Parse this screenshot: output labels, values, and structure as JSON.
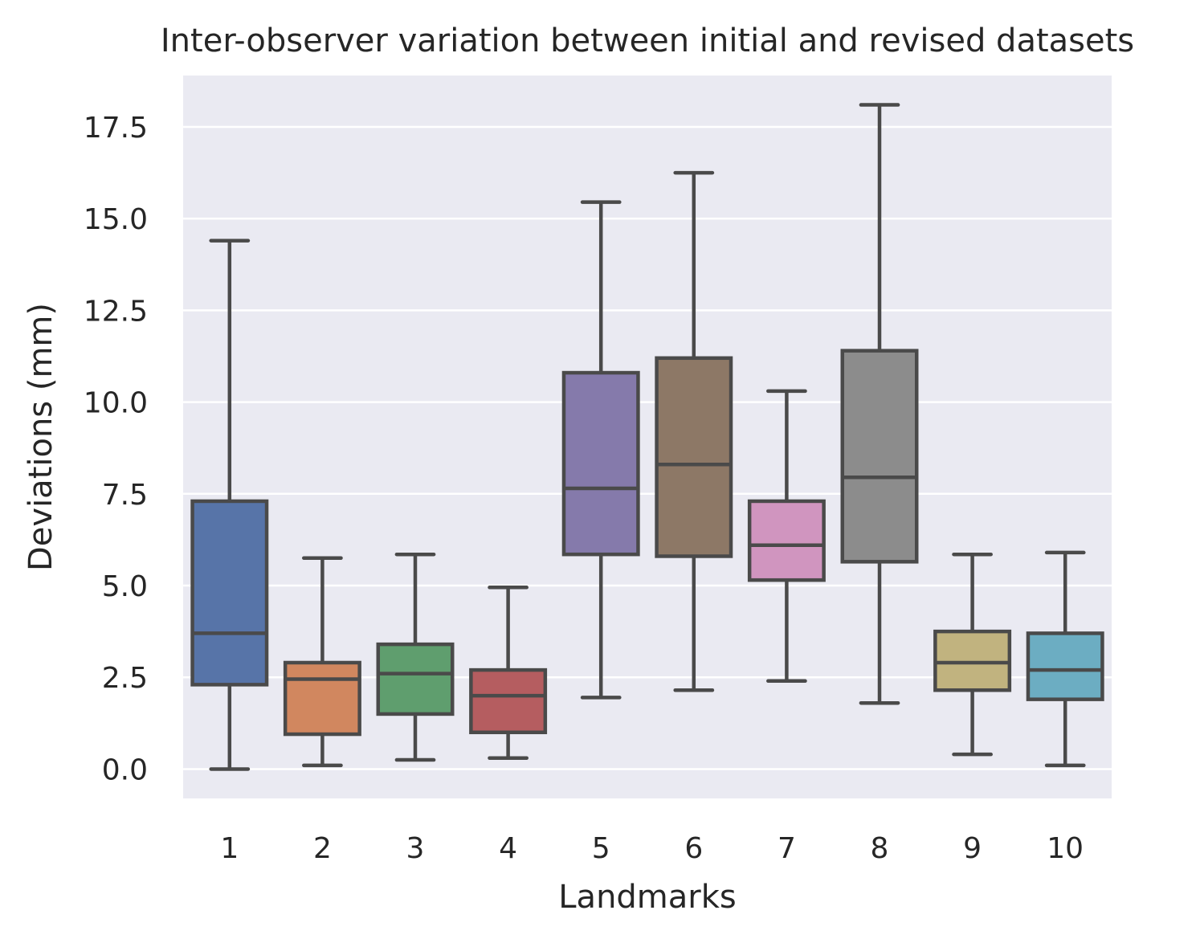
{
  "chart_data": {
    "type": "box",
    "title": "Inter-observer variation between initial and revised datasets",
    "xlabel": "Landmarks",
    "ylabel": "Deviations (mm)",
    "ylim": [
      -0.8,
      18.9
    ],
    "yticks": [
      "0.0",
      "2.5",
      "5.0",
      "7.5",
      "10.0",
      "12.5",
      "15.0",
      "17.5"
    ],
    "grid": true,
    "legend": "none",
    "background_color": "#eaeaf2",
    "grid_color": "#ffffff",
    "line_color": "#4a4a4a",
    "categories": [
      "1",
      "2",
      "3",
      "4",
      "5",
      "6",
      "7",
      "8",
      "9",
      "10"
    ],
    "boxes": [
      {
        "category": "1",
        "whisker_low": 0.0,
        "q1": 2.3,
        "median": 3.7,
        "q3": 7.3,
        "whisker_high": 14.4,
        "color": "#5774a8"
      },
      {
        "category": "2",
        "whisker_low": 0.1,
        "q1": 0.95,
        "median": 2.45,
        "q3": 2.9,
        "whisker_high": 5.75,
        "color": "#d1875f"
      },
      {
        "category": "3",
        "whisker_low": 0.25,
        "q1": 1.5,
        "median": 2.6,
        "q3": 3.4,
        "whisker_high": 5.85,
        "color": "#5f9e6e"
      },
      {
        "category": "4",
        "whisker_low": 0.3,
        "q1": 1.0,
        "median": 2.0,
        "q3": 2.7,
        "whisker_high": 4.95,
        "color": "#b55d60"
      },
      {
        "category": "5",
        "whisker_low": 1.95,
        "q1": 5.85,
        "median": 7.65,
        "q3": 10.8,
        "whisker_high": 15.45,
        "color": "#857aab"
      },
      {
        "category": "6",
        "whisker_low": 2.15,
        "q1": 5.8,
        "median": 8.3,
        "q3": 11.2,
        "whisker_high": 16.25,
        "color": "#8d7866"
      },
      {
        "category": "7",
        "whisker_low": 2.4,
        "q1": 5.15,
        "median": 6.1,
        "q3": 7.3,
        "whisker_high": 10.3,
        "color": "#d095bf"
      },
      {
        "category": "8",
        "whisker_low": 1.8,
        "q1": 5.65,
        "median": 7.95,
        "q3": 11.4,
        "whisker_high": 18.1,
        "color": "#8c8c8c"
      },
      {
        "category": "9",
        "whisker_low": 0.4,
        "q1": 2.15,
        "median": 2.9,
        "q3": 3.75,
        "whisker_high": 5.85,
        "color": "#c1b37f"
      },
      {
        "category": "10",
        "whisker_low": 0.1,
        "q1": 1.9,
        "median": 2.7,
        "q3": 3.7,
        "whisker_high": 5.9,
        "color": "#6cadc2"
      }
    ]
  }
}
